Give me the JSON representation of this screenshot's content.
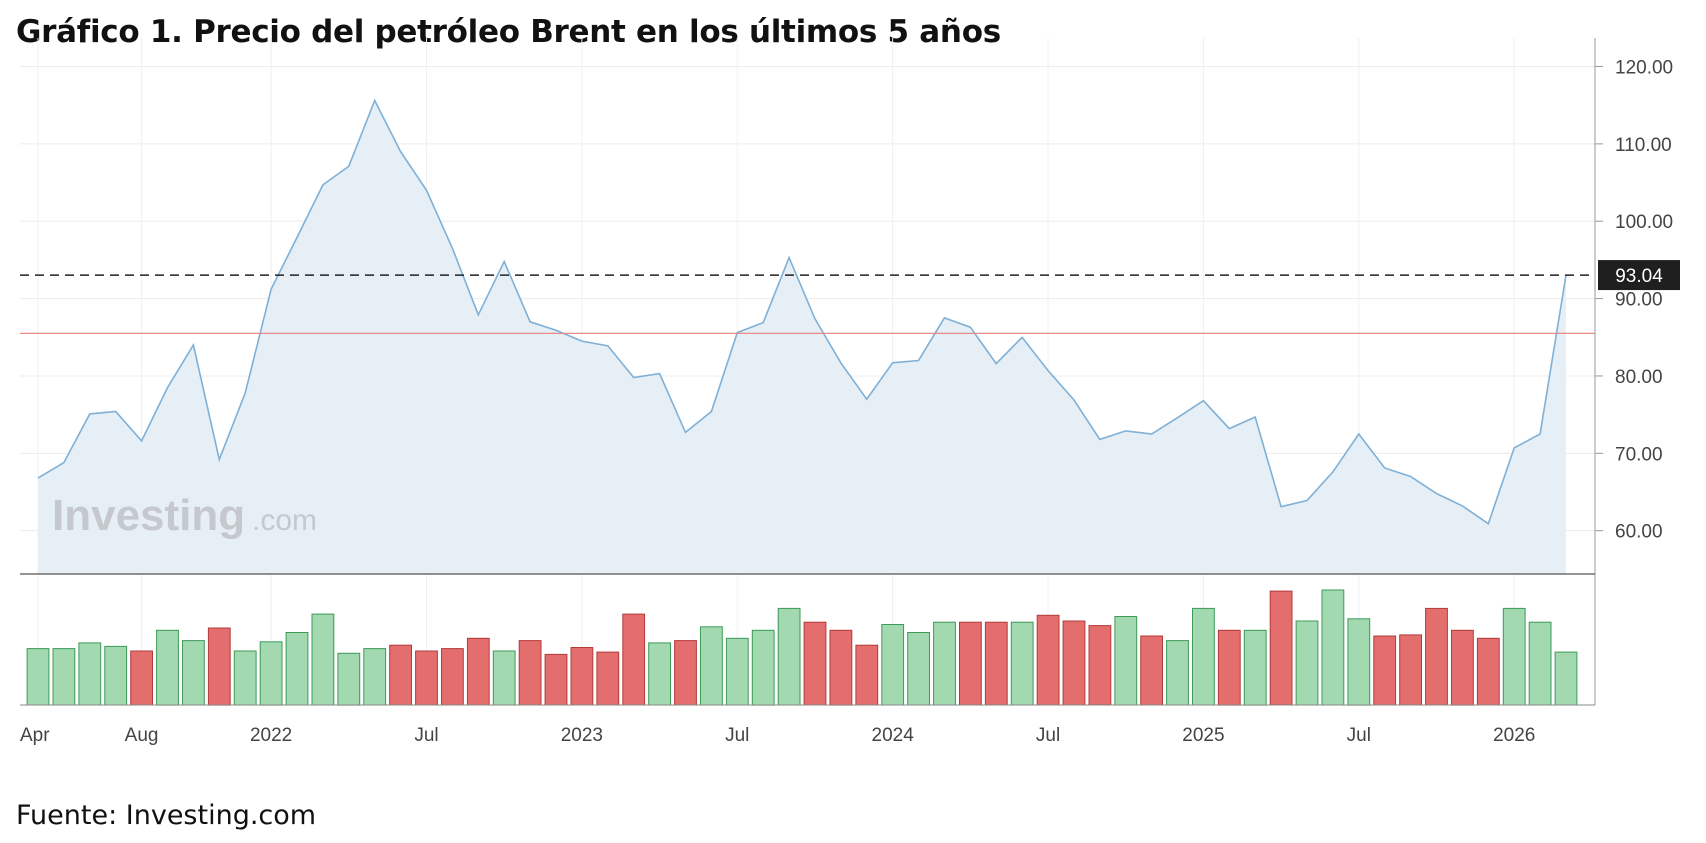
{
  "title": "Gráfico 1. Precio del petróleo Brent en los últimos 5 años",
  "source": "Fuente: Investing.com",
  "watermark": {
    "brand": "Investing",
    "suffix": ".com"
  },
  "colors": {
    "line": "#7fb0d6",
    "area": "#e6eef6",
    "up": "#a3d9b1",
    "up_border": "#3d9a57",
    "down": "#e46d6d",
    "down_border": "#b23b3b",
    "ref_line": "#e88a8a",
    "tag_bg": "#1f1f1f"
  },
  "chart_data": [
    {
      "type": "area",
      "series": [
        {
          "x": [
            "2021-04",
            "2021-05",
            "2021-06",
            "2021-07",
            "2021-08",
            "2021-09",
            "2021-10",
            "2021-11",
            "2021-12",
            "2022-01",
            "2022-02",
            "2022-03",
            "2022-04",
            "2022-05",
            "2022-06",
            "2022-07",
            "2022-08",
            "2022-09",
            "2022-10",
            "2022-11",
            "2022-12",
            "2023-01",
            "2023-02",
            "2023-03",
            "2023-04",
            "2023-05",
            "2023-06",
            "2023-07",
            "2023-08",
            "2023-09",
            "2023-10",
            "2023-11",
            "2023-12",
            "2024-01",
            "2024-02",
            "2024-03",
            "2024-04",
            "2024-05",
            "2024-06",
            "2024-07",
            "2024-08",
            "2024-09",
            "2024-10",
            "2024-11",
            "2024-12",
            "2025-01",
            "2025-02",
            "2025-03",
            "2025-04",
            "2025-05",
            "2025-06",
            "2025-07",
            "2025-08",
            "2025-09",
            "2025-10",
            "2025-11",
            "2025-12",
            "2026-01",
            "2026-02",
            "2026-03"
          ],
          "values": [
            66.8,
            68.8,
            75.1,
            75.4,
            71.6,
            78.5,
            84.0,
            69.2,
            77.8,
            91.2,
            97.9,
            104.7,
            107.1,
            115.6,
            109.0,
            104.0,
            96.5,
            87.9,
            94.8,
            87.0,
            85.9,
            84.5,
            83.9,
            79.8,
            80.3,
            72.7,
            75.4,
            85.6,
            86.9,
            95.3,
            87.4,
            81.7,
            77.0,
            81.7,
            82.0,
            87.5,
            86.3,
            81.6,
            85.0,
            80.7,
            76.9,
            71.8,
            72.9,
            72.5,
            74.6,
            76.8,
            73.2,
            74.7,
            63.1,
            63.9,
            67.6,
            72.5,
            68.1,
            67.0,
            64.8,
            63.2,
            60.9,
            70.7,
            72.5,
            93.04
          ]
        }
      ],
      "xlabel": "",
      "ylabel": "",
      "y_ticks": [
        60,
        70,
        80,
        90,
        100,
        110,
        120
      ],
      "y_tick_labels": [
        "60.00",
        "70.00",
        "80.00",
        "90.00",
        "100.00",
        "110.00",
        "120.00"
      ],
      "ylim": [
        54.4,
        121.1
      ],
      "x_tick_labels": [
        "Apr",
        "Aug",
        "2022",
        "Jul",
        "2023",
        "Jul",
        "2024",
        "Jul",
        "2025",
        "Jul",
        "2026"
      ],
      "x_tick_dates": [
        "2021-04",
        "2021-08",
        "2022-01",
        "2022-07",
        "2023-01",
        "2023-07",
        "2024-01",
        "2024-07",
        "2025-01",
        "2025-07",
        "2026-01"
      ],
      "last_price_label": "93.04",
      "last_price": 93.04,
      "reference_line": 85.5,
      "grid": true
    },
    {
      "type": "bar",
      "categories": [
        "2021-04",
        "2021-05",
        "2021-06",
        "2021-07",
        "2021-08",
        "2021-09",
        "2021-10",
        "2021-11",
        "2021-12",
        "2022-01",
        "2022-02",
        "2022-03",
        "2022-04",
        "2022-05",
        "2022-06",
        "2022-07",
        "2022-08",
        "2022-09",
        "2022-10",
        "2022-11",
        "2022-12",
        "2023-01",
        "2023-02",
        "2023-03",
        "2023-04",
        "2023-05",
        "2023-06",
        "2023-07",
        "2023-08",
        "2023-09",
        "2023-10",
        "2023-11",
        "2023-12",
        "2024-01",
        "2024-02",
        "2024-03",
        "2024-04",
        "2024-05",
        "2024-06",
        "2024-07",
        "2024-08",
        "2024-09",
        "2024-10",
        "2024-11",
        "2024-12",
        "2025-01",
        "2025-02",
        "2025-03",
        "2025-04",
        "2025-05",
        "2025-06",
        "2025-07",
        "2025-08",
        "2025-09",
        "2025-10",
        "2025-11",
        "2025-12",
        "2026-01",
        "2026-02",
        "2026-03"
      ],
      "values": [
        0.49,
        0.49,
        0.54,
        0.51,
        0.47,
        0.65,
        0.56,
        0.67,
        0.47,
        0.55,
        0.63,
        0.79,
        0.45,
        0.49,
        0.52,
        0.47,
        0.49,
        0.58,
        0.47,
        0.56,
        0.44,
        0.5,
        0.46,
        0.79,
        0.54,
        0.56,
        0.68,
        0.58,
        0.65,
        0.84,
        0.72,
        0.65,
        0.52,
        0.7,
        0.63,
        0.72,
        0.72,
        0.72,
        0.72,
        0.78,
        0.73,
        0.69,
        0.77,
        0.6,
        0.56,
        0.84,
        0.65,
        0.65,
        0.99,
        0.73,
        1.0,
        0.75,
        0.6,
        0.61,
        0.84,
        0.65,
        0.58,
        0.84,
        0.72,
        0.46
      ],
      "direction": [
        "up",
        "up",
        "up",
        "up",
        "down",
        "up",
        "up",
        "down",
        "up",
        "up",
        "up",
        "up",
        "up",
        "up",
        "down",
        "down",
        "down",
        "down",
        "up",
        "down",
        "down",
        "down",
        "down",
        "down",
        "up",
        "down",
        "up",
        "up",
        "up",
        "up",
        "down",
        "down",
        "down",
        "up",
        "up",
        "up",
        "down",
        "down",
        "up",
        "down",
        "down",
        "down",
        "up",
        "down",
        "up",
        "up",
        "down",
        "up",
        "down",
        "up",
        "up",
        "up",
        "down",
        "down",
        "down",
        "down",
        "down",
        "up",
        "up",
        "up"
      ]
    }
  ]
}
